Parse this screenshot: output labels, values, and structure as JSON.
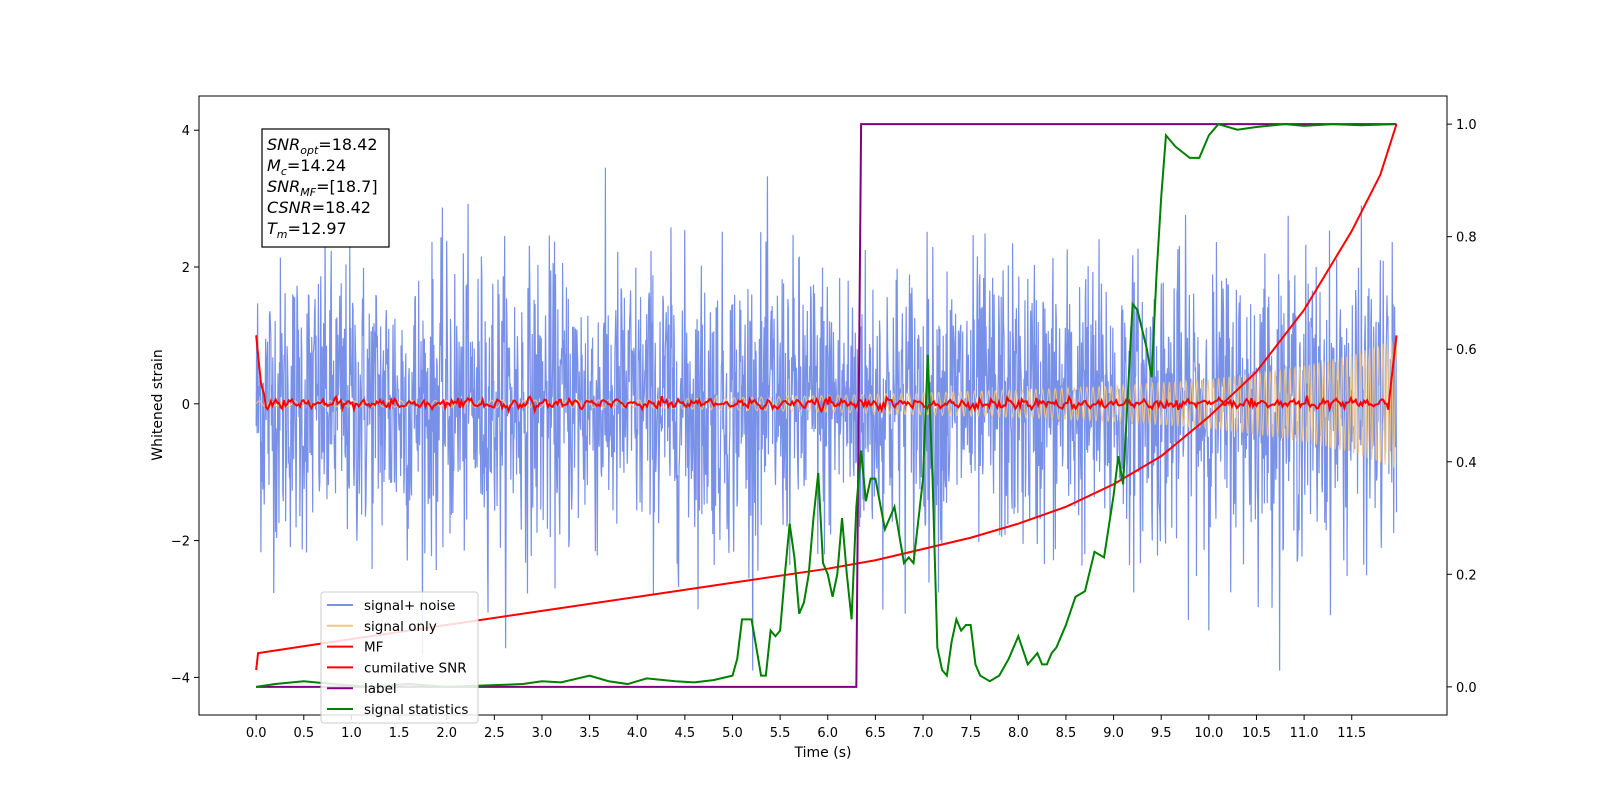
{
  "chart_data": {
    "type": "line",
    "xlabel": "Time (s)",
    "ylabel": "Whitened strain",
    "xlim": [
      -0.6,
      12.5
    ],
    "ylim": [
      -4.55,
      4.5
    ],
    "y2lim": [
      -0.05,
      1.05
    ],
    "x_ticks": [
      0.0,
      0.5,
      1.0,
      1.5,
      2.0,
      2.5,
      3.0,
      3.5,
      4.0,
      4.5,
      5.0,
      5.5,
      6.0,
      6.5,
      7.0,
      7.5,
      8.0,
      8.5,
      9.0,
      9.5,
      10.0,
      10.5,
      11.0,
      11.5
    ],
    "x_tick_labels": [
      "0.0",
      "0.5",
      "1.0",
      "1.5",
      "2.0",
      "2.5",
      "3.0",
      "3.5",
      "4.0",
      "4.5",
      "5.0",
      "5.5",
      "6.0",
      "6.5",
      "7.0",
      "7.5",
      "8.0",
      "8.5",
      "9.0",
      "9.5",
      "10.0",
      "10.5",
      "11.0",
      "11.5"
    ],
    "y_ticks": [
      -4,
      -2,
      0,
      2,
      4
    ],
    "y_tick_labels": [
      "−4",
      "−2",
      "0",
      "2",
      "4"
    ],
    "y2_ticks": [
      0.0,
      0.2,
      0.4,
      0.6,
      0.8,
      1.0
    ],
    "y2_tick_labels": [
      "0.0",
      "0.2",
      "0.4",
      "0.6",
      "0.8",
      "1.0"
    ],
    "grid": false,
    "legend_position": "lower-left",
    "annotation": [
      {
        "base": "SNR",
        "sub": "opt",
        "value": "=18.42"
      },
      {
        "base": "M",
        "sub": "c",
        "value": "=14.24"
      },
      {
        "base": "SNR",
        "sub": "MF",
        "value": "=[18.7]"
      },
      {
        "base": "CSNR",
        "sub": "",
        "value": "=18.42"
      },
      {
        "base": "T",
        "sub": "m",
        "value": "=12.97"
      }
    ],
    "series": [
      {
        "name": "signal+ noise",
        "color": "#7890e8",
        "axis": "left",
        "description": "whitened noisy strain, dense oscillation roughly within ±2 with spikes up to about ±3.9",
        "x_range": [
          0.0,
          11.97
        ],
        "typical_amplitude": 1.7,
        "peak_amplitude": 3.9
      },
      {
        "name": "signal only",
        "color": "#f4c67f",
        "axis": "left",
        "description": "chirp whose envelope grows from ~0.05 at t=0 to ~0.95 at t=11.97",
        "envelope": {
          "x": [
            0.0,
            4.0,
            6.0,
            8.0,
            9.0,
            10.0,
            10.5,
            11.0,
            11.5,
            11.97
          ],
          "y": [
            0.04,
            0.06,
            0.12,
            0.2,
            0.26,
            0.36,
            0.45,
            0.56,
            0.72,
            0.95
          ]
        }
      },
      {
        "name": "MF",
        "color": "#ff0000",
        "axis": "left",
        "description": "matched-filter output, near 0 with small ripples, starts at 1.0 and ends at 1.0",
        "points": {
          "x": [
            0.0,
            0.05,
            0.1,
            6.7,
            11.9,
            11.97
          ],
          "y": [
            1.0,
            0.3,
            0.05,
            0.15,
            0.15,
            1.0
          ]
        }
      },
      {
        "name": "cumilative SNR",
        "color": "#ff0000",
        "axis": "right",
        "points": {
          "x": [
            0.0,
            0.02,
            1.0,
            2.0,
            3.0,
            4.0,
            5.0,
            6.0,
            6.5,
            7.0,
            7.5,
            8.0,
            8.5,
            9.0,
            9.5,
            10.0,
            10.5,
            11.0,
            11.5,
            11.8,
            11.97
          ],
          "y": [
            0.03,
            0.06,
            0.085,
            0.11,
            0.135,
            0.16,
            0.185,
            0.21,
            0.225,
            0.245,
            0.265,
            0.29,
            0.32,
            0.36,
            0.41,
            0.48,
            0.56,
            0.67,
            0.81,
            0.91,
            1.0
          ]
        }
      },
      {
        "name": "label",
        "color": "#800080",
        "axis": "right",
        "points": {
          "x": [
            0.0,
            6.3,
            6.35,
            11.97
          ],
          "y": [
            0.0,
            0.0,
            1.0,
            1.0
          ]
        }
      },
      {
        "name": "signal statistics",
        "color": "#008000",
        "axis": "right",
        "points": {
          "x": [
            0.0,
            0.2,
            0.5,
            0.8,
            1.2,
            1.6,
            2.0,
            2.5,
            2.8,
            3.0,
            3.2,
            3.5,
            3.7,
            3.9,
            4.1,
            4.4,
            4.6,
            4.8,
            5.0,
            5.05,
            5.1,
            5.2,
            5.3,
            5.35,
            5.4,
            5.45,
            5.5,
            5.55,
            5.6,
            5.65,
            5.7,
            5.75,
            5.8,
            5.85,
            5.9,
            5.95,
            6.0,
            6.05,
            6.1,
            6.15,
            6.2,
            6.25,
            6.3,
            6.35,
            6.4,
            6.45,
            6.5,
            6.6,
            6.7,
            6.8,
            6.85,
            6.9,
            7.0,
            7.05,
            7.1,
            7.15,
            7.2,
            7.25,
            7.3,
            7.35,
            7.4,
            7.45,
            7.5,
            7.55,
            7.6,
            7.7,
            7.8,
            7.9,
            8.0,
            8.1,
            8.2,
            8.25,
            8.3,
            8.35,
            8.4,
            8.5,
            8.6,
            8.7,
            8.8,
            8.9,
            9.0,
            9.05,
            9.1,
            9.15,
            9.2,
            9.25,
            9.35,
            9.4,
            9.45,
            9.5,
            9.55,
            9.6,
            9.65,
            9.8,
            9.9,
            10.0,
            10.1,
            10.3,
            10.5,
            10.8,
            11.0,
            11.3,
            11.6,
            11.95
          ],
          "y": [
            0.0,
            0.005,
            0.01,
            0.005,
            0.0,
            0.005,
            0.0,
            0.003,
            0.005,
            0.01,
            0.008,
            0.02,
            0.01,
            0.005,
            0.015,
            0.01,
            0.008,
            0.012,
            0.02,
            0.05,
            0.12,
            0.12,
            0.02,
            0.02,
            0.1,
            0.09,
            0.1,
            0.2,
            0.29,
            0.23,
            0.13,
            0.15,
            0.2,
            0.3,
            0.38,
            0.22,
            0.2,
            0.16,
            0.2,
            0.3,
            0.2,
            0.12,
            0.32,
            0.42,
            0.33,
            0.37,
            0.37,
            0.28,
            0.32,
            0.22,
            0.23,
            0.22,
            0.37,
            0.59,
            0.37,
            0.07,
            0.03,
            0.02,
            0.08,
            0.12,
            0.1,
            0.11,
            0.11,
            0.04,
            0.02,
            0.01,
            0.02,
            0.05,
            0.09,
            0.04,
            0.06,
            0.04,
            0.04,
            0.06,
            0.07,
            0.11,
            0.16,
            0.17,
            0.24,
            0.23,
            0.34,
            0.41,
            0.36,
            0.52,
            0.68,
            0.67,
            0.6,
            0.55,
            0.73,
            0.87,
            0.98,
            0.97,
            0.96,
            0.94,
            0.94,
            0.98,
            1.0,
            0.99,
            0.995,
            1.0,
            0.997,
            1.0,
            0.998,
            1.0
          ]
        }
      }
    ]
  }
}
